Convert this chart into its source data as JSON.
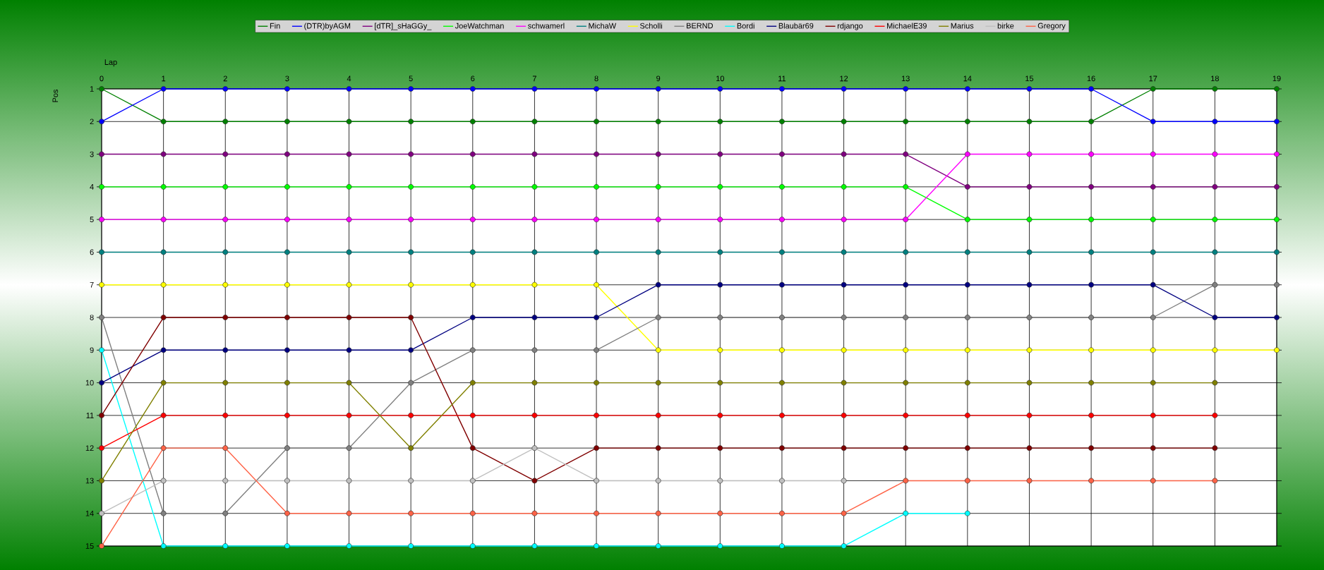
{
  "chart_data": {
    "type": "line",
    "xlabel": "Lap",
    "ylabel": "Pos",
    "x": [
      0,
      1,
      2,
      3,
      4,
      5,
      6,
      7,
      8,
      9,
      10,
      11,
      12,
      13,
      14,
      15,
      16,
      17,
      18,
      19
    ],
    "xlim": [
      0,
      19
    ],
    "xticks": [
      0,
      1,
      2,
      3,
      4,
      5,
      6,
      7,
      8,
      9,
      10,
      11,
      12,
      13,
      14,
      15,
      16,
      17,
      18,
      19
    ],
    "ylim": [
      15,
      1
    ],
    "yticks": [
      1,
      2,
      3,
      4,
      5,
      6,
      7,
      8,
      9,
      10,
      11,
      12,
      13,
      14,
      15
    ],
    "grid": true,
    "legend": "top",
    "marker": "circle",
    "line_style": "solid",
    "series": [
      {
        "name": "Fin",
        "color": "#008000",
        "values": [
          1,
          2,
          2,
          2,
          2,
          2,
          2,
          2,
          2,
          2,
          2,
          2,
          2,
          2,
          2,
          2,
          2,
          1,
          1,
          1
        ]
      },
      {
        "name": "(DTR)byAGM",
        "color": "#0000ff",
        "values": [
          2,
          1,
          1,
          1,
          1,
          1,
          1,
          1,
          1,
          1,
          1,
          1,
          1,
          1,
          1,
          1,
          1,
          2,
          2,
          2
        ]
      },
      {
        "name": "[dTR]_sHaGGy_",
        "color": "#800080",
        "values": [
          3,
          3,
          3,
          3,
          3,
          3,
          3,
          3,
          3,
          3,
          3,
          3,
          3,
          3,
          4,
          4,
          4,
          4,
          4,
          4
        ]
      },
      {
        "name": "JoeWatchman",
        "color": "#00ff00",
        "values": [
          4,
          4,
          4,
          4,
          4,
          4,
          4,
          4,
          4,
          4,
          4,
          4,
          4,
          4,
          5,
          5,
          5,
          5,
          5,
          5
        ]
      },
      {
        "name": "schwamerl",
        "color": "#ff00ff",
        "values": [
          5,
          5,
          5,
          5,
          5,
          5,
          5,
          5,
          5,
          5,
          5,
          5,
          5,
          5,
          3,
          3,
          3,
          3,
          3,
          3
        ]
      },
      {
        "name": "MichaW",
        "color": "#008080",
        "values": [
          6,
          6,
          6,
          6,
          6,
          6,
          6,
          6,
          6,
          6,
          6,
          6,
          6,
          6,
          6,
          6,
          6,
          6,
          6,
          6
        ]
      },
      {
        "name": "Scholli",
        "color": "#ffff00",
        "values": [
          7,
          7,
          7,
          7,
          7,
          7,
          7,
          7,
          7,
          9,
          9,
          9,
          9,
          9,
          9,
          9,
          9,
          9,
          9,
          9
        ]
      },
      {
        "name": "BERND",
        "color": "#808080",
        "values": [
          8,
          14,
          14,
          12,
          12,
          10,
          9,
          9,
          9,
          8,
          8,
          8,
          8,
          8,
          8,
          8,
          8,
          8,
          7,
          7
        ]
      },
      {
        "name": "Bordi",
        "color": "#00ffff",
        "values": [
          9,
          15,
          15,
          15,
          15,
          15,
          15,
          15,
          15,
          15,
          15,
          15,
          15,
          14,
          14,
          null,
          null,
          null,
          null,
          null
        ]
      },
      {
        "name": "Blaubär69",
        "color": "#000080",
        "values": [
          10,
          9,
          9,
          9,
          9,
          9,
          8,
          8,
          8,
          7,
          7,
          7,
          7,
          7,
          7,
          7,
          7,
          7,
          8,
          8
        ]
      },
      {
        "name": "rdjango",
        "color": "#800000",
        "values": [
          11,
          8,
          8,
          8,
          8,
          8,
          12,
          13,
          12,
          12,
          12,
          12,
          12,
          12,
          12,
          12,
          12,
          12,
          12,
          null
        ]
      },
      {
        "name": "MichaelE39",
        "color": "#ff0000",
        "values": [
          12,
          11,
          11,
          11,
          11,
          11,
          11,
          11,
          11,
          11,
          11,
          11,
          11,
          11,
          11,
          11,
          11,
          11,
          11,
          null
        ]
      },
      {
        "name": "Marius",
        "color": "#808000",
        "values": [
          13,
          10,
          10,
          10,
          10,
          12,
          10,
          10,
          10,
          10,
          10,
          10,
          10,
          10,
          10,
          10,
          10,
          10,
          10,
          null
        ]
      },
      {
        "name": "birke",
        "color": "#c0c0c0",
        "values": [
          14,
          13,
          13,
          13,
          13,
          13,
          13,
          12,
          13,
          13,
          13,
          13,
          13,
          null,
          null,
          null,
          null,
          null,
          null,
          null
        ]
      },
      {
        "name": "Gregory",
        "color": "#ff6347",
        "values": [
          15,
          12,
          12,
          14,
          14,
          14,
          14,
          14,
          14,
          14,
          14,
          14,
          14,
          13,
          13,
          13,
          13,
          13,
          13,
          null
        ]
      }
    ]
  }
}
